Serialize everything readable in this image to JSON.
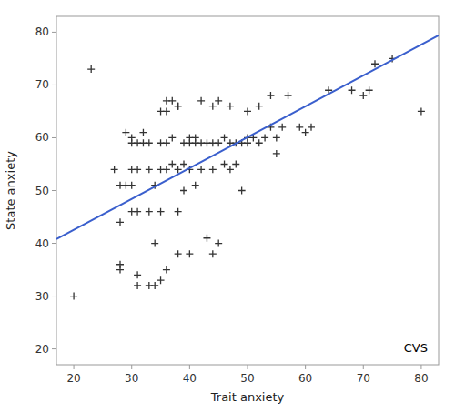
{
  "chart_data": {
    "type": "scatter",
    "xlabel": "Trait anxiety",
    "ylabel": "State anxiety",
    "annotation": "CVS",
    "xlim": [
      17,
      83
    ],
    "ylim": [
      17,
      83
    ],
    "xticks": [
      20,
      30,
      40,
      50,
      60,
      70,
      80
    ],
    "yticks": [
      20,
      30,
      40,
      50,
      60,
      70,
      80
    ],
    "series": [
      {
        "type": "scatter",
        "marker": "plus",
        "color": "#333333",
        "x": [
          20,
          23,
          27,
          28,
          28,
          28,
          28,
          29,
          29,
          30,
          30,
          30,
          30,
          30,
          31,
          31,
          31,
          31,
          31,
          32,
          32,
          33,
          33,
          33,
          33,
          34,
          34,
          34,
          35,
          35,
          35,
          35,
          35,
          36,
          36,
          36,
          36,
          36,
          37,
          37,
          37,
          38,
          38,
          38,
          38,
          38,
          39,
          39,
          39,
          40,
          40,
          40,
          40,
          41,
          41,
          41,
          42,
          42,
          42,
          43,
          43,
          44,
          44,
          44,
          44,
          45,
          45,
          45,
          46,
          46,
          47,
          47,
          47,
          48,
          48,
          49,
          49,
          50,
          50,
          50,
          51,
          52,
          52,
          53,
          54,
          54,
          55,
          55,
          56,
          57,
          59,
          60,
          61,
          64,
          68,
          70,
          71,
          72,
          75,
          80
        ],
        "values": [
          30,
          73,
          54,
          44,
          51,
          35,
          36,
          51,
          61,
          54,
          59,
          60,
          46,
          51,
          32,
          34,
          46,
          54,
          59,
          59,
          61,
          32,
          46,
          54,
          59,
          32,
          40,
          51,
          33,
          46,
          54,
          59,
          65,
          35,
          54,
          59,
          65,
          67,
          55,
          60,
          67,
          38,
          46,
          54,
          66,
          66,
          50,
          55,
          59,
          38,
          54,
          59,
          60,
          51,
          59,
          60,
          54,
          59,
          67,
          41,
          59,
          38,
          54,
          59,
          66,
          40,
          59,
          67,
          55,
          60,
          54,
          59,
          66,
          55,
          59,
          50,
          59,
          59,
          60,
          65,
          60,
          59,
          66,
          60,
          62,
          68,
          57,
          60,
          62,
          68,
          62,
          61,
          62,
          69,
          69,
          68,
          69,
          74,
          75,
          65
        ]
      },
      {
        "type": "line",
        "color": "#3a5fcd",
        "x": [
          17,
          83
        ],
        "values": [
          40.8,
          79.4
        ]
      }
    ]
  }
}
